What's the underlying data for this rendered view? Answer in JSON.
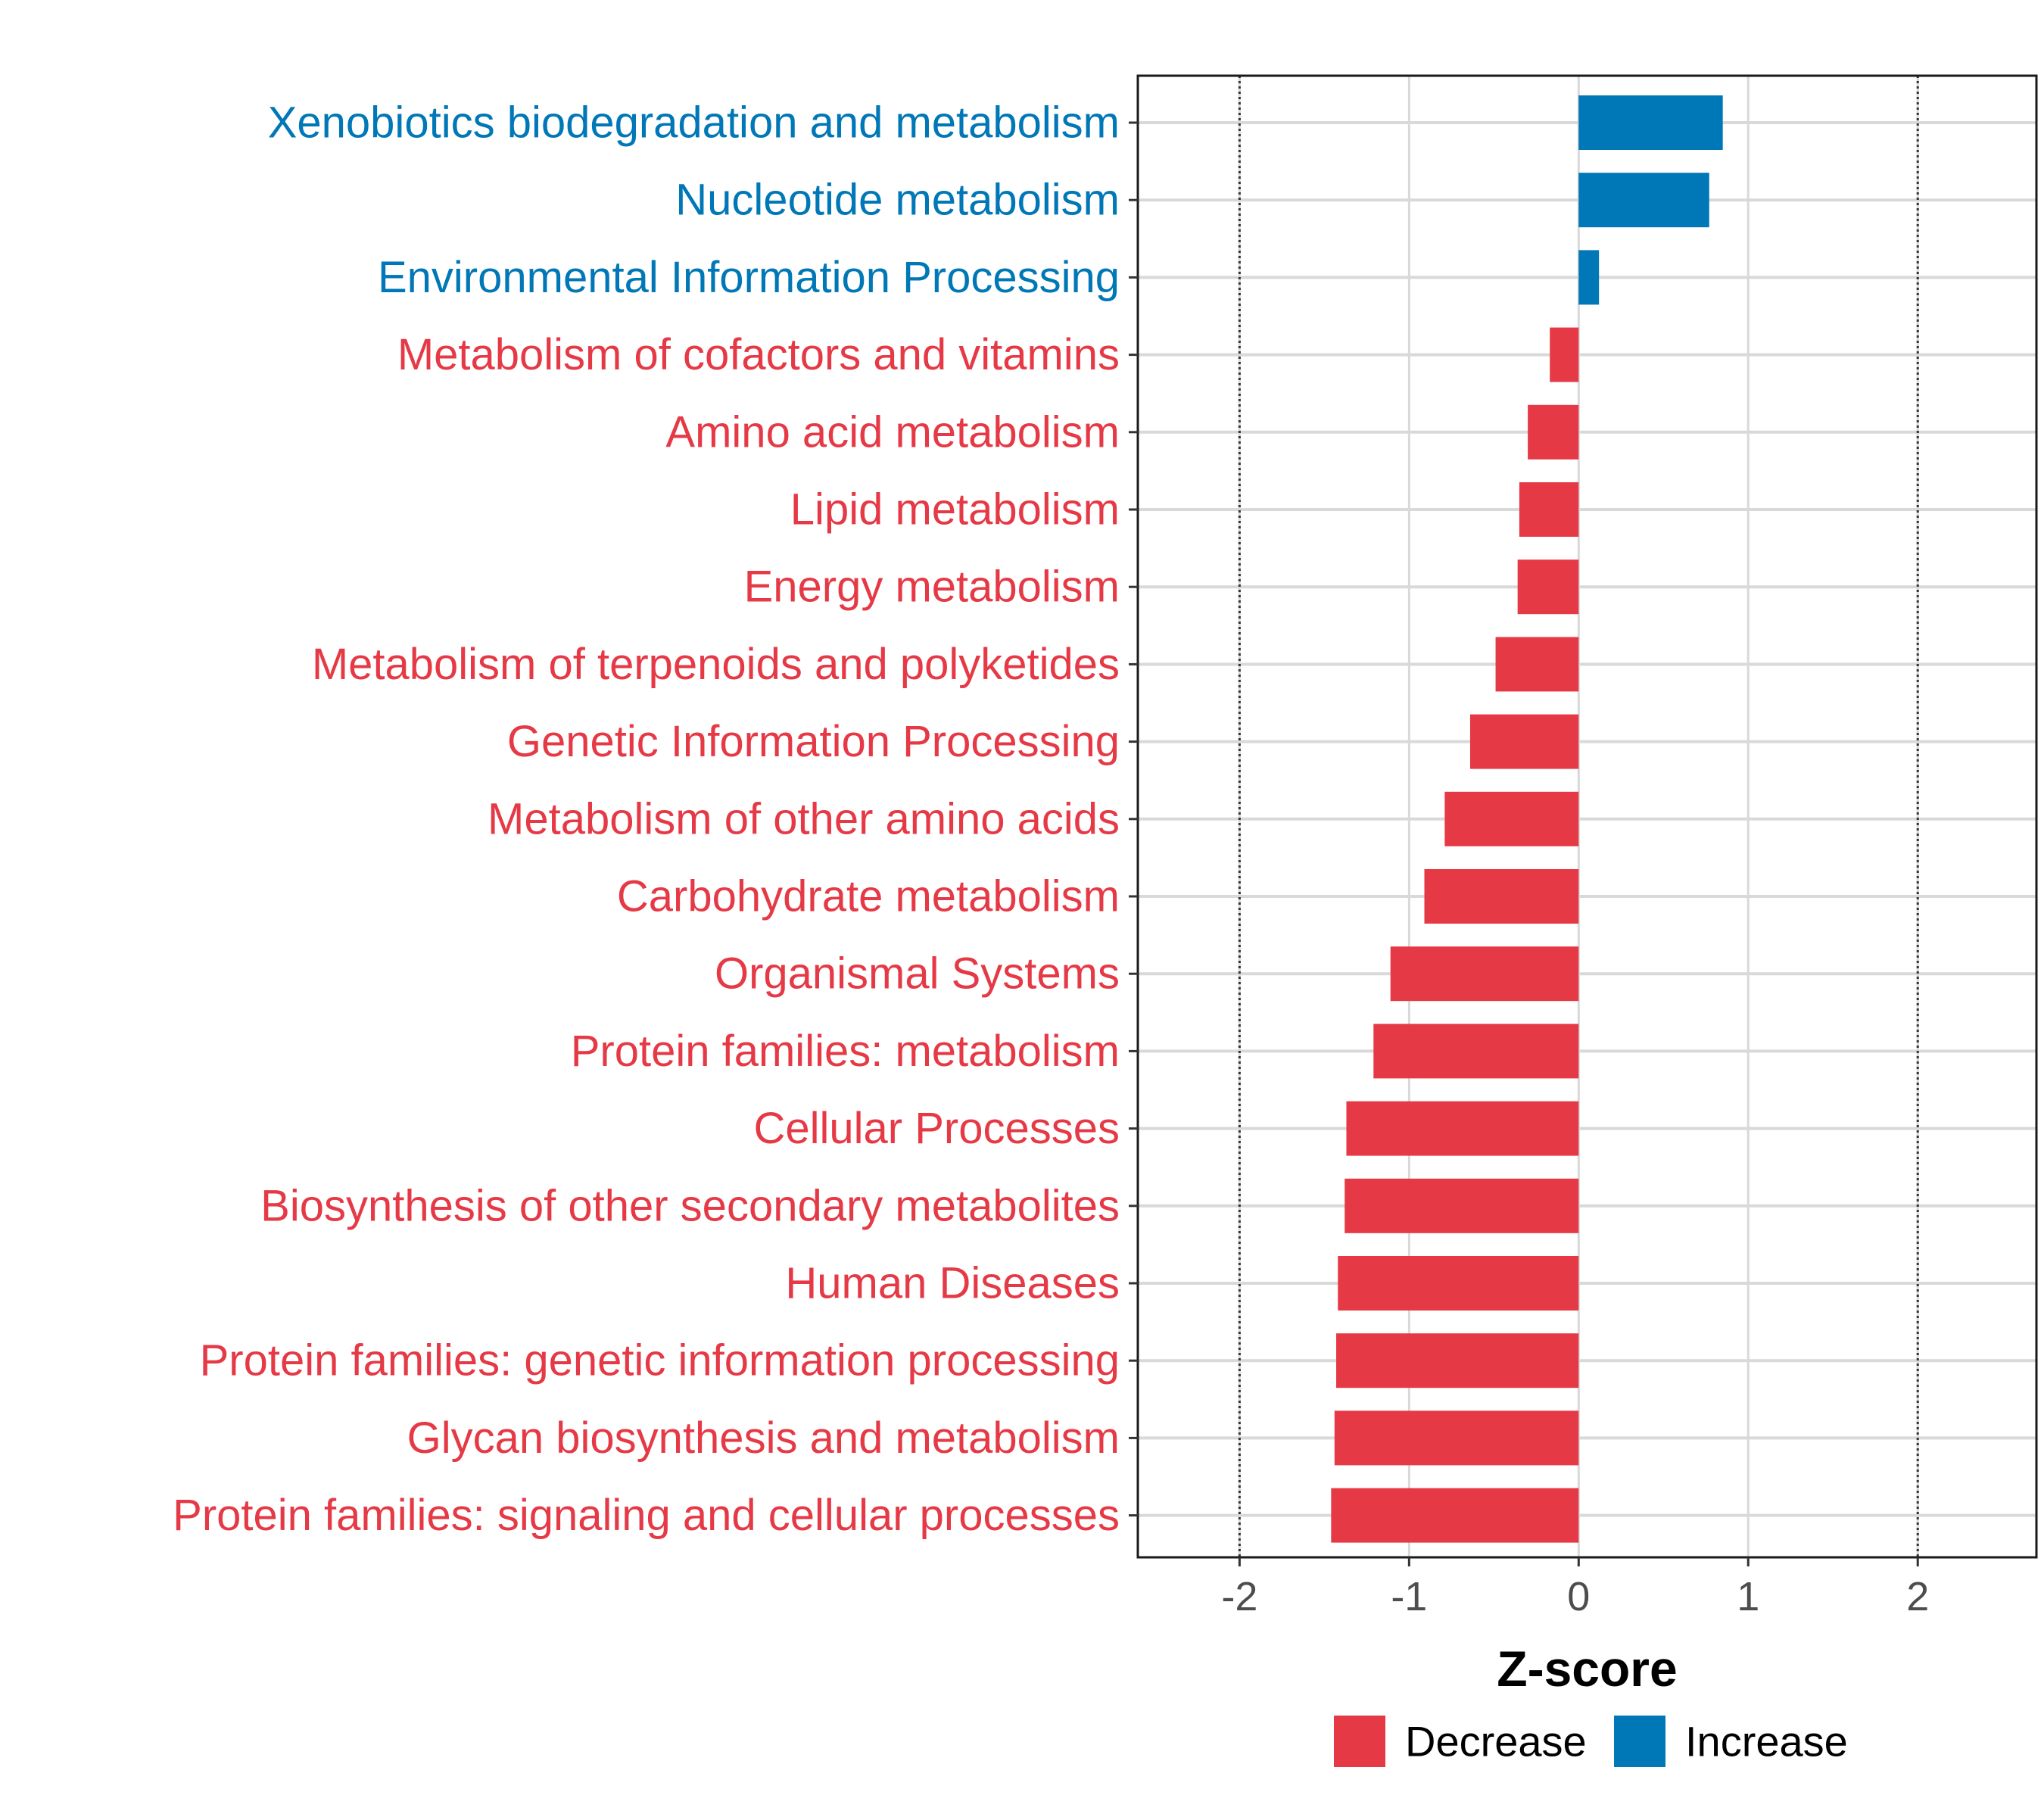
{
  "chart_data": {
    "type": "bar",
    "orientation": "horizontal",
    "xlabel": "Z-score",
    "ylabel": "",
    "xlim": [
      -2.6,
      2.7
    ],
    "x_ticks": [
      "-2",
      "-1",
      "0",
      "1",
      "2"
    ],
    "x_tick_values": [
      -2,
      -1,
      0,
      1,
      2
    ],
    "reference_lines": [
      -2,
      2
    ],
    "grid": true,
    "categories": [
      "Xenobiotics biodegradation and metabolism",
      "Nucleotide metabolism",
      "Environmental Information Processing",
      "Metabolism of cofactors and vitamins",
      "Amino acid metabolism",
      "Lipid metabolism",
      "Energy metabolism",
      "Metabolism of terpenoids and polyketides",
      "Genetic Information Processing",
      "Metabolism of other amino acids",
      "Carbohydrate metabolism",
      "Organismal Systems",
      "Protein families: metabolism",
      "Cellular Processes",
      "Biosynthesis of other secondary metabolites",
      "Human Diseases",
      "Protein families: genetic information processing",
      "Glycan biosynthesis and metabolism",
      "Protein families: signaling and cellular processes"
    ],
    "values": [
      0.85,
      0.77,
      0.12,
      -0.17,
      -0.3,
      -0.35,
      -0.36,
      -0.49,
      -0.64,
      -0.79,
      -0.91,
      -1.11,
      -1.21,
      -1.37,
      -1.38,
      -1.42,
      -1.43,
      -1.44,
      -1.46
    ],
    "groups": [
      "Increase",
      "Increase",
      "Increase",
      "Decrease",
      "Decrease",
      "Decrease",
      "Decrease",
      "Decrease",
      "Decrease",
      "Decrease",
      "Decrease",
      "Decrease",
      "Decrease",
      "Decrease",
      "Decrease",
      "Decrease",
      "Decrease",
      "Decrease",
      "Decrease"
    ],
    "legend": {
      "position": "bottom",
      "items": [
        {
          "label": "Decrease",
          "color": "#E63946"
        },
        {
          "label": "Increase",
          "color": "#0077B6"
        }
      ]
    }
  }
}
